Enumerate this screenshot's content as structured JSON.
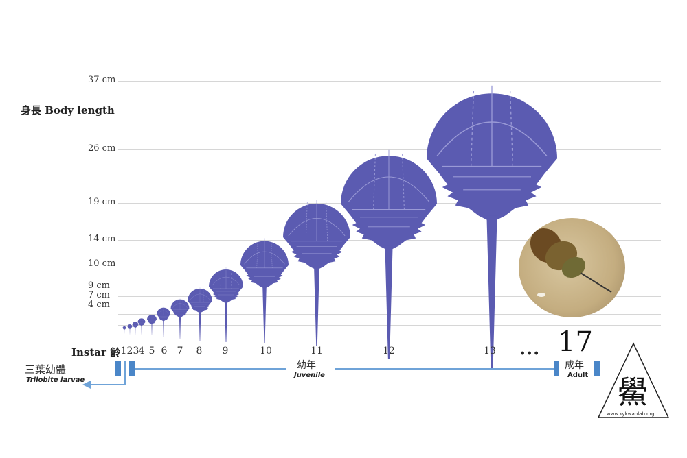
{
  "y_axis": {
    "label": "身長 Body length",
    "ticks": [
      "37 cm",
      "26 cm",
      "19 cm",
      "14 cm",
      "10 cm",
      "9 cm",
      "7 cm",
      "4 cm"
    ]
  },
  "instar": {
    "label": "Instar 齡",
    "numbers": [
      "1",
      "2",
      "3",
      "4",
      "5",
      "6",
      "7",
      "8",
      "9",
      "10",
      "11",
      "12",
      "13"
    ],
    "ellipsis": "...",
    "last": "17"
  },
  "stages": {
    "larvae_cn": "三葉幼體",
    "larvae_en": "Trilobite larvae",
    "juvenile_cn": "幼年",
    "juvenile_en": "Juvenile",
    "adult_cn": "成年",
    "adult_en": "Adult"
  },
  "logo": {
    "glyph": "鱟",
    "url": "www.kykwanlab.org"
  },
  "colors": {
    "crab": "#5b5bb1",
    "crab_line": "#9a9ad6",
    "bars": "#4a86c8",
    "photo_bg": "#c9b48a"
  }
}
